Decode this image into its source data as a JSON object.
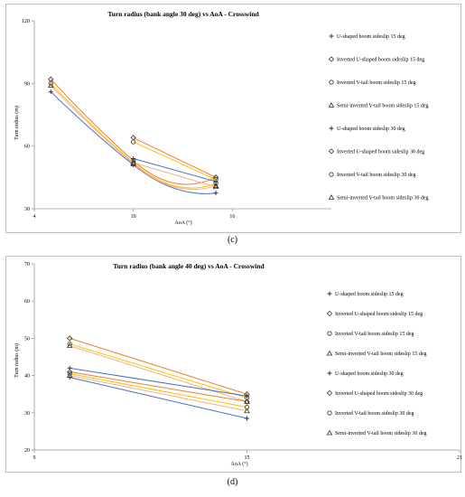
{
  "chart_data": [
    {
      "type": "line",
      "title": "Turn radius (bank angle 30 deg) vs AoA - Crosswind",
      "xlabel": "AoA (°)",
      "ylabel": "Turn radius (m)",
      "xlim": [
        4,
        22
      ],
      "ylim": [
        30,
        120
      ],
      "xticks": [
        "4",
        "10",
        "16"
      ],
      "yticks": [
        "30",
        "60",
        "90",
        "120"
      ],
      "grid": false,
      "legend_position": "right",
      "series": [
        {
          "name": "U-shaped boom sideslip 15 deg",
          "marker": "plus",
          "color": "#4472c4",
          "x": [
            5,
            10,
            15
          ],
          "y": [
            86,
            51,
            37.5
          ]
        },
        {
          "name": "Inverted U-shaped boom sideslip 15 deg",
          "marker": "diamond",
          "color": "#ed7d31",
          "x": [
            5,
            10,
            15
          ],
          "y": [
            92,
            53,
            45
          ]
        },
        {
          "name": "Inverted V-tail boom sideslip 15 deg",
          "marker": "circle",
          "color": "#ffc000",
          "x": [
            5,
            10,
            15
          ],
          "y": [
            90,
            52,
            42
          ]
        },
        {
          "name": "Semi-inverted V-tail boom sideslip 15 deg",
          "marker": "triangle",
          "color": "#f4b183",
          "x": [
            5,
            10,
            15
          ],
          "y": [
            89,
            51.5,
            41
          ]
        },
        {
          "name": "U-shaped boom sideslip 30 deg",
          "marker": "plus",
          "color": "#4472c4",
          "x": [
            10,
            15
          ],
          "y": [
            54,
            43
          ]
        },
        {
          "name": "Inverted U-shaped boom sideslip 30 deg",
          "marker": "diamond",
          "color": "#ed7d31",
          "x": [
            10,
            15
          ],
          "y": [
            64,
            45
          ]
        },
        {
          "name": "Inverted V-tail boom sideslip 30 deg",
          "marker": "circle",
          "color": "#ffc000",
          "x": [
            10,
            15
          ],
          "y": [
            62,
            44
          ]
        },
        {
          "name": "Semi-inverted V-tail boom sideslip 30 deg",
          "marker": "triangle",
          "color": "#f4b183",
          "x": [
            10,
            15
          ],
          "y": [
            52,
            40.5
          ]
        }
      ]
    },
    {
      "type": "line",
      "title": "Turn radius (bank angle 40 deg) vs AoA - Crosswind",
      "xlabel": "AoA (°)",
      "ylabel": "Turn radius (m)",
      "xlim": [
        9,
        21
      ],
      "ylim": [
        20,
        70
      ],
      "xticks": [
        "9",
        "15",
        "21"
      ],
      "yticks": [
        "20",
        "30",
        "40",
        "50",
        "60",
        "70"
      ],
      "grid": false,
      "legend_position": "right",
      "series": [
        {
          "name": "U-shaped boom sideslip 15 deg",
          "marker": "plus",
          "color": "#4472c4",
          "x": [
            10,
            15
          ],
          "y": [
            39.5,
            28.5
          ]
        },
        {
          "name": "Inverted U-shaped boom sideslip 15 deg",
          "marker": "diamond",
          "color": "#ed7d31",
          "x": [
            10,
            15
          ],
          "y": [
            50,
            35
          ]
        },
        {
          "name": "Inverted V-tail boom sideslip 15 deg",
          "marker": "circle",
          "color": "#ffc000",
          "x": [
            10,
            15
          ],
          "y": [
            48.5,
            34
          ]
        },
        {
          "name": "Semi-inverted V-tail boom sideslip 15 deg",
          "marker": "triangle",
          "color": "#f4b183",
          "x": [
            10,
            15
          ],
          "y": [
            48,
            33
          ]
        },
        {
          "name": "U-shaped boom sideslip 30 deg",
          "marker": "plus",
          "color": "#4472c4",
          "x": [
            10,
            15
          ],
          "y": [
            42,
            34.5
          ]
        },
        {
          "name": "Inverted U-shaped boom sideslip 30 deg",
          "marker": "diamond",
          "color": "#ed7d31",
          "x": [
            10,
            15
          ],
          "y": [
            41,
            33
          ]
        },
        {
          "name": "Inverted V-tail boom sideslip 30 deg",
          "marker": "circle",
          "color": "#ffc000",
          "x": [
            10,
            15
          ],
          "y": [
            40.5,
            31.5
          ]
        },
        {
          "name": "Semi-inverted V-tail boom sideslip 30 deg",
          "marker": "triangle",
          "color": "#f4b183",
          "x": [
            10,
            15
          ],
          "y": [
            40,
            30.5
          ]
        }
      ]
    }
  ],
  "captions": [
    "(c)",
    "(d)"
  ]
}
